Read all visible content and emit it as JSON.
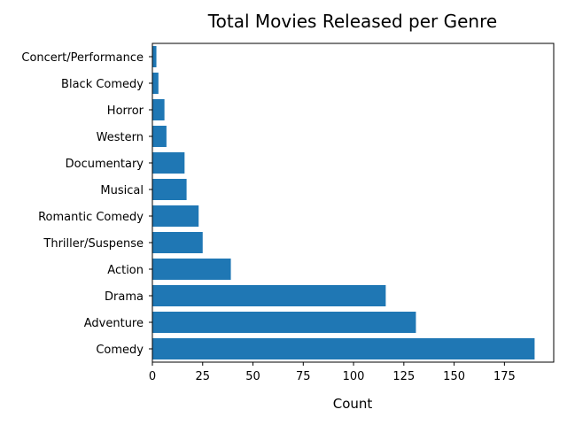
{
  "chart_data": {
    "type": "bar",
    "orientation": "horizontal",
    "title": "Total Movies Released per Genre",
    "xlabel": "Count",
    "ylabel": "",
    "categories": [
      "Comedy",
      "Adventure",
      "Drama",
      "Action",
      "Thriller/Suspense",
      "Romantic Comedy",
      "Musical",
      "Documentary",
      "Western",
      "Horror",
      "Black Comedy",
      "Concert/Performance"
    ],
    "values": [
      190,
      131,
      116,
      39,
      25,
      23,
      17,
      16,
      7,
      6,
      3,
      2
    ],
    "xlim": [
      0,
      199.5
    ],
    "xticks": [
      0,
      25,
      50,
      75,
      100,
      125,
      150,
      175
    ],
    "bar_color": "#1f77b4",
    "grid": false,
    "legend": "none"
  }
}
